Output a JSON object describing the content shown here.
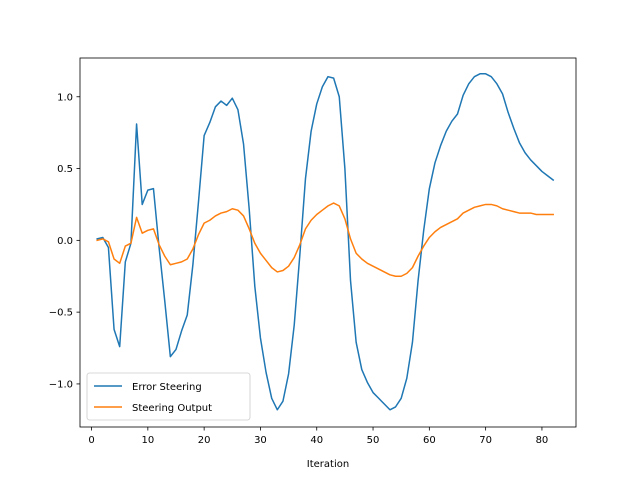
{
  "chart_data": {
    "type": "line",
    "title": "",
    "xlabel": "Iteration",
    "ylabel": "",
    "xlim": [
      -2.05,
      86.05
    ],
    "ylim": [
      -1.3,
      1.27
    ],
    "xticks": [
      0,
      10,
      20,
      30,
      40,
      50,
      60,
      70,
      80
    ],
    "xtick_labels": [
      "0",
      "10",
      "20",
      "30",
      "40",
      "50",
      "60",
      "70",
      "80"
    ],
    "yticks": [
      -1.0,
      -0.5,
      0.0,
      0.5,
      1.0
    ],
    "ytick_labels": [
      "−1.0",
      "−0.5",
      "0.0",
      "0.5",
      "1.0"
    ],
    "grid": false,
    "legend_position": "lower-left",
    "x": [
      1,
      2,
      3,
      4,
      5,
      6,
      7,
      8,
      9,
      10,
      11,
      12,
      13,
      14,
      15,
      16,
      17,
      18,
      19,
      20,
      21,
      22,
      23,
      24,
      25,
      26,
      27,
      28,
      29,
      30,
      31,
      32,
      33,
      34,
      35,
      36,
      37,
      38,
      39,
      40,
      41,
      42,
      43,
      44,
      45,
      46,
      47,
      48,
      49,
      50,
      51,
      52,
      53,
      54,
      55,
      56,
      57,
      58,
      59,
      60,
      61,
      62,
      63,
      64,
      65,
      66,
      67,
      68,
      69,
      70,
      71,
      72,
      73,
      74,
      75,
      76,
      77,
      78,
      79,
      80,
      81,
      82
    ],
    "series": [
      {
        "name": "Error Steering",
        "color": "#1f77b4",
        "values": [
          0.01,
          0.02,
          -0.05,
          -0.62,
          -0.74,
          -0.15,
          -0.02,
          0.81,
          0.25,
          0.35,
          0.36,
          -0.05,
          -0.42,
          -0.81,
          -0.76,
          -0.63,
          -0.52,
          -0.17,
          0.27,
          0.73,
          0.82,
          0.93,
          0.97,
          0.94,
          0.99,
          0.91,
          0.67,
          0.22,
          -0.32,
          -0.68,
          -0.92,
          -1.1,
          -1.18,
          -1.12,
          -0.93,
          -0.59,
          -0.1,
          0.43,
          0.76,
          0.95,
          1.07,
          1.14,
          1.13,
          1.0,
          0.5,
          -0.28,
          -0.71,
          -0.9,
          -0.99,
          -1.06,
          -1.1,
          -1.14,
          -1.18,
          -1.16,
          -1.1,
          -0.96,
          -0.71,
          -0.28,
          0.07,
          0.36,
          0.54,
          0.66,
          0.76,
          0.83,
          0.88,
          1.01,
          1.09,
          1.14,
          1.16,
          1.16,
          1.14,
          1.09,
          1.02,
          0.89,
          0.78,
          0.68,
          0.61,
          0.56,
          0.52,
          0.48,
          0.45,
          0.42
        ]
      },
      {
        "name": "Steering Output",
        "color": "#ff7f0e",
        "values": [
          0.0,
          0.01,
          -0.01,
          -0.13,
          -0.16,
          -0.04,
          -0.02,
          0.16,
          0.05,
          0.07,
          0.08,
          -0.03,
          -0.11,
          -0.17,
          -0.16,
          -0.15,
          -0.13,
          -0.06,
          0.04,
          0.12,
          0.14,
          0.17,
          0.19,
          0.2,
          0.22,
          0.21,
          0.17,
          0.08,
          -0.02,
          -0.09,
          -0.14,
          -0.19,
          -0.22,
          -0.21,
          -0.18,
          -0.12,
          -0.03,
          0.08,
          0.14,
          0.18,
          0.21,
          0.24,
          0.26,
          0.24,
          0.15,
          0.01,
          -0.09,
          -0.13,
          -0.16,
          -0.18,
          -0.2,
          -0.22,
          -0.24,
          -0.25,
          -0.25,
          -0.23,
          -0.19,
          -0.11,
          -0.04,
          0.02,
          0.06,
          0.09,
          0.11,
          0.13,
          0.15,
          0.19,
          0.21,
          0.23,
          0.24,
          0.25,
          0.25,
          0.24,
          0.22,
          0.21,
          0.2,
          0.19,
          0.19,
          0.19,
          0.18,
          0.18,
          0.18,
          0.18
        ]
      }
    ]
  }
}
